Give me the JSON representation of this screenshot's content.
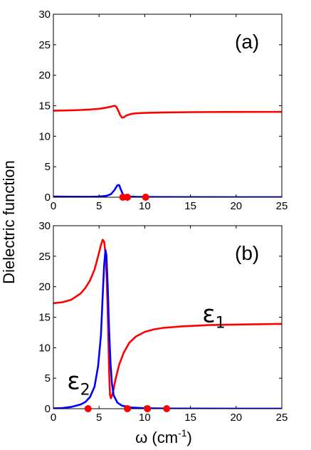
{
  "chart_data": {
    "type": "line",
    "ylabel": "Dielectric function",
    "xlabel_main": "ω (cm",
    "xlabel_sup": "-1",
    "xlabel_close": ")",
    "xlim": [
      0,
      25
    ],
    "xticks": [
      0,
      5,
      10,
      15,
      20,
      25
    ],
    "ylim": [
      0,
      30
    ],
    "yticks": [
      0,
      5,
      10,
      15,
      20,
      25,
      30
    ],
    "grid": false,
    "panels": [
      {
        "label": "(a)",
        "series": [
          {
            "color": "#ff0000",
            "points": [
              [
                0,
                14.2
              ],
              [
                1,
                14.22
              ],
              [
                2,
                14.25
              ],
              [
                3,
                14.3
              ],
              [
                4,
                14.38
              ],
              [
                5,
                14.5
              ],
              [
                5.8,
                14.68
              ],
              [
                6.3,
                14.85
              ],
              [
                6.7,
                15.0
              ],
              [
                6.9,
                14.8
              ],
              [
                7.1,
                14.2
              ],
              [
                7.3,
                13.5
              ],
              [
                7.5,
                13.05
              ],
              [
                7.7,
                13.1
              ],
              [
                8.0,
                13.4
              ],
              [
                8.5,
                13.65
              ],
              [
                9,
                13.75
              ],
              [
                10,
                13.82
              ],
              [
                12,
                13.9
              ],
              [
                15,
                13.95
              ],
              [
                20,
                13.98
              ],
              [
                25,
                14.0
              ]
            ]
          },
          {
            "color": "#0000ff",
            "points": [
              [
                0,
                0.12
              ],
              [
                2,
                0.08
              ],
              [
                4,
                0.07
              ],
              [
                5,
                0.1
              ],
              [
                5.8,
                0.22
              ],
              [
                6.3,
                0.5
              ],
              [
                6.7,
                1.2
              ],
              [
                7.0,
                1.95
              ],
              [
                7.2,
                2.0
              ],
              [
                7.4,
                1.2
              ],
              [
                7.6,
                0.5
              ],
              [
                7.8,
                0.25
              ],
              [
                8.2,
                0.12
              ],
              [
                9,
                0.07
              ],
              [
                11,
                0.04
              ],
              [
                15,
                0.02
              ],
              [
                20,
                0.01
              ],
              [
                25,
                0.01
              ]
            ]
          }
        ],
        "markers": {
          "color": "#ff0000",
          "x": [
            7.6,
            8.1,
            10.1
          ],
          "y": 0
        }
      },
      {
        "label": "(b)",
        "series": [
          {
            "color": "#ff0000",
            "points": [
              [
                0,
                17.3
              ],
              [
                1,
                17.45
              ],
              [
                2,
                17.9
              ],
              [
                3,
                18.9
              ],
              [
                3.5,
                19.8
              ],
              [
                4,
                21.0
              ],
              [
                4.5,
                22.8
              ],
              [
                4.9,
                25.0
              ],
              [
                5.2,
                26.8
              ],
              [
                5.4,
                27.7
              ],
              [
                5.55,
                27.4
              ],
              [
                5.7,
                25.5
              ],
              [
                5.85,
                21.0
              ],
              [
                6.0,
                13.0
              ],
              [
                6.1,
                6.0
              ],
              [
                6.2,
                2.2
              ],
              [
                6.3,
                1.7
              ],
              [
                6.5,
                2.6
              ],
              [
                6.8,
                4.8
              ],
              [
                7.2,
                7.2
              ],
              [
                7.7,
                9.2
              ],
              [
                8.3,
                10.8
              ],
              [
                9,
                11.8
              ],
              [
                10,
                12.6
              ],
              [
                11,
                13.0
              ],
              [
                12,
                13.25
              ],
              [
                14,
                13.5
              ],
              [
                17,
                13.7
              ],
              [
                20,
                13.8
              ],
              [
                25,
                13.9
              ]
            ]
          },
          {
            "color": "#0000ff",
            "points": [
              [
                0,
                0.05
              ],
              [
                1,
                0.12
              ],
              [
                2,
                0.3
              ],
              [
                3,
                0.7
              ],
              [
                3.5,
                1.1
              ],
              [
                4,
                1.9
              ],
              [
                4.5,
                3.6
              ],
              [
                4.9,
                7.0
              ],
              [
                5.2,
                12.0
              ],
              [
                5.4,
                18.5
              ],
              [
                5.55,
                23.5
              ],
              [
                5.7,
                26.0
              ],
              [
                5.8,
                25.2
              ],
              [
                5.95,
                20.0
              ],
              [
                6.1,
                13.0
              ],
              [
                6.25,
                7.5
              ],
              [
                6.4,
                4.2
              ],
              [
                6.6,
                2.2
              ],
              [
                7,
                1.0
              ],
              [
                7.5,
                0.5
              ],
              [
                8.5,
                0.2
              ],
              [
                10,
                0.08
              ],
              [
                12,
                0.04
              ],
              [
                15,
                0.02
              ],
              [
                20,
                0.01
              ],
              [
                25,
                0.01
              ]
            ]
          }
        ],
        "markers": {
          "color": "#ff0000",
          "x": [
            3.8,
            8.1,
            10.3,
            12.4
          ],
          "y": 0
        },
        "annotations": [
          {
            "name": "epsilon-1-label",
            "symbol": "ε",
            "subscript": "1",
            "x": 16.3,
            "y": 14.2
          },
          {
            "name": "epsilon-2-label",
            "symbol": "ε",
            "subscript": "2",
            "x": 1.5,
            "y": 3.2
          }
        ]
      }
    ]
  }
}
